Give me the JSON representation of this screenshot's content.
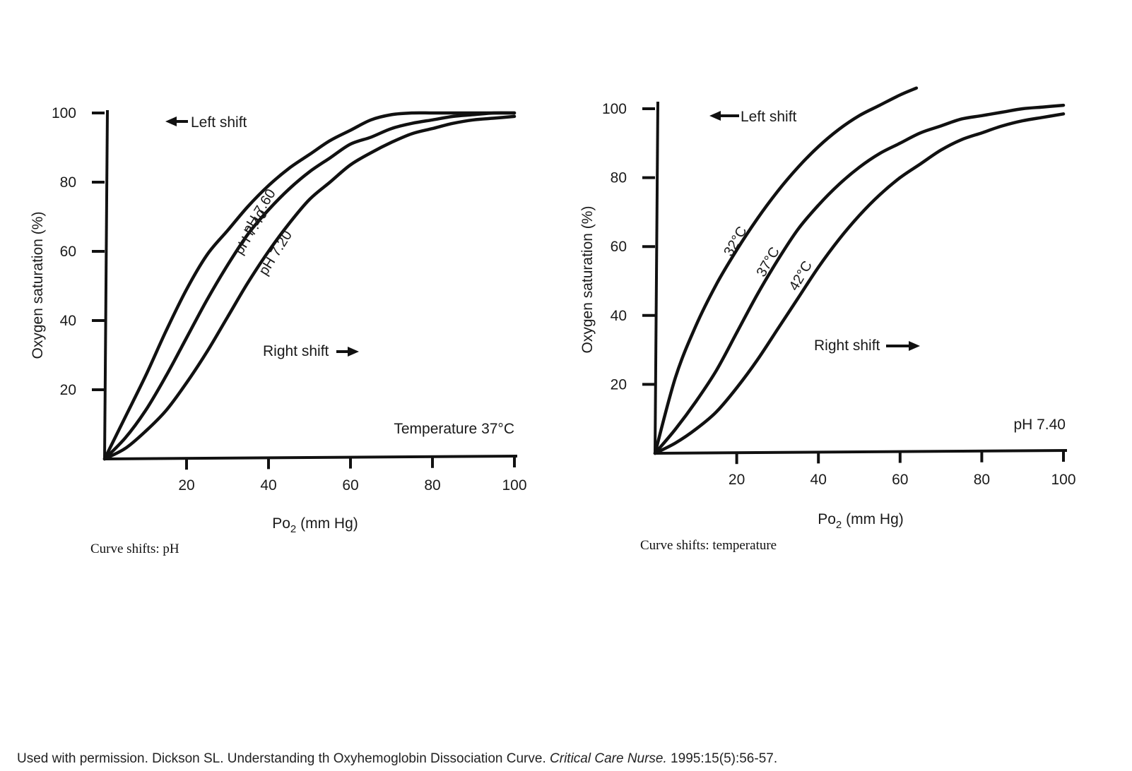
{
  "chart_data": [
    {
      "type": "line",
      "ylabel": "Oxygen saturation (%)",
      "xlabel": "Po",
      "xlabel_sub": "2",
      "xlabel_unit": " (mm Hg)",
      "xlim": [
        0,
        100
      ],
      "ylim": [
        0,
        100
      ],
      "x_ticks": [
        "20",
        "40",
        "60",
        "80",
        "100"
      ],
      "y_ticks": [
        "20",
        "40",
        "60",
        "80",
        "100"
      ],
      "grid": false,
      "annotations": {
        "left_shift": "Left shift",
        "right_shift": "Right shift",
        "condition": "Temperature 37°C"
      },
      "caption": "Curve shifts: pH",
      "series": [
        {
          "name": "pH 7.60",
          "x": [
            0,
            5,
            10,
            15,
            20,
            25,
            30,
            35,
            40,
            45,
            50,
            55,
            60,
            65,
            70,
            75,
            80,
            85,
            90,
            95,
            100
          ],
          "y": [
            0,
            12,
            24,
            37,
            49,
            59,
            66,
            73,
            79,
            84,
            88,
            92,
            95,
            98,
            99.5,
            100,
            100,
            100,
            100,
            100,
            100
          ]
        },
        {
          "name": "pH 7.40",
          "x": [
            0,
            5,
            10,
            15,
            20,
            25,
            30,
            35,
            40,
            45,
            50,
            55,
            60,
            65,
            70,
            75,
            80,
            85,
            90,
            95,
            100
          ],
          "y": [
            0,
            6,
            14,
            24,
            35,
            46,
            56,
            65,
            72,
            78,
            83,
            87,
            91,
            93,
            95.5,
            97,
            98,
            99,
            99.5,
            100,
            100
          ]
        },
        {
          "name": "pH 7.20",
          "x": [
            0,
            5,
            10,
            15,
            20,
            25,
            30,
            35,
            40,
            45,
            50,
            55,
            60,
            65,
            70,
            75,
            80,
            85,
            90,
            95,
            100
          ],
          "y": [
            0,
            3,
            8,
            14,
            22,
            31,
            41,
            51,
            60,
            68,
            75,
            80,
            85,
            88.5,
            91.5,
            94,
            95.5,
            97,
            98,
            98.5,
            99
          ]
        }
      ]
    },
    {
      "type": "line",
      "ylabel": "Oxygen saturation (%)",
      "xlabel": "Po",
      "xlabel_sub": "2",
      "xlabel_unit": " (mm Hg)",
      "xlim": [
        0,
        100
      ],
      "ylim": [
        0,
        100
      ],
      "x_ticks": [
        "20",
        "40",
        "60",
        "80",
        "100"
      ],
      "y_ticks": [
        "20",
        "40",
        "60",
        "80",
        "100"
      ],
      "grid": false,
      "annotations": {
        "left_shift": "Left shift",
        "right_shift": "Right shift",
        "condition": "pH 7.40"
      },
      "caption": "Curve shifts: temperature",
      "series": [
        {
          "name": "32°C",
          "x": [
            0,
            5,
            10,
            15,
            20,
            25,
            30,
            35,
            40,
            45,
            50,
            55,
            60,
            64
          ],
          "y": [
            0,
            22,
            37,
            49,
            59,
            68,
            76,
            83,
            89,
            94,
            98,
            101,
            104,
            106
          ]
        },
        {
          "name": "37°C",
          "x": [
            0,
            5,
            10,
            15,
            20,
            25,
            30,
            35,
            40,
            45,
            50,
            55,
            60,
            65,
            70,
            75,
            80,
            85,
            90,
            95,
            100
          ],
          "y": [
            0,
            7,
            15,
            24,
            35,
            46,
            56,
            65,
            72,
            78,
            83,
            87,
            90,
            93,
            95,
            97,
            98,
            99,
            100,
            100.5,
            101
          ]
        },
        {
          "name": "42°C",
          "x": [
            0,
            5,
            10,
            15,
            20,
            25,
            30,
            35,
            40,
            45,
            50,
            55,
            60,
            65,
            70,
            75,
            80,
            85,
            90,
            95,
            100
          ],
          "y": [
            0,
            3,
            7,
            12,
            19,
            27,
            36,
            45,
            54,
            62,
            69,
            75,
            80,
            84,
            88,
            91,
            93,
            95,
            96.5,
            97.5,
            98.5
          ]
        }
      ]
    }
  ],
  "citation": {
    "prefix": "Used with permission. Dickson SL. Understanding th Oxyhemoglobin Dissociation Curve. ",
    "journal": "Critical Care Nurse.",
    "suffix": " 1995:15(5):56-57."
  }
}
